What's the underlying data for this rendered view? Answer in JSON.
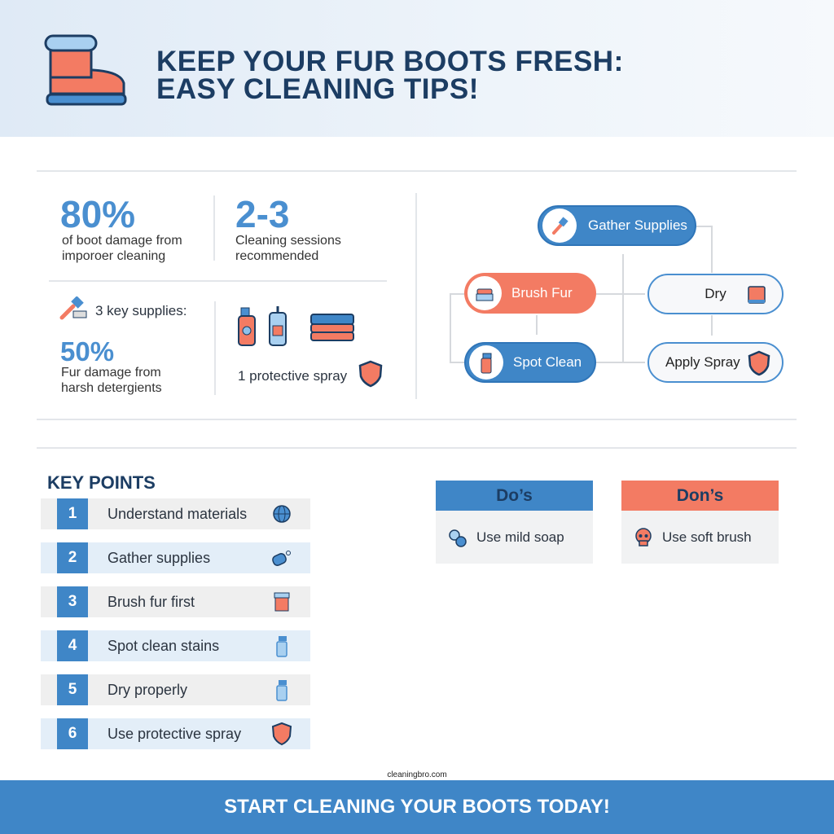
{
  "header": {
    "title_line1": "KEEP YOUR FUR BOOTS FRESH:",
    "title_line2": "EASY CLEANING TIPS!",
    "icon": "fur-boot-icon"
  },
  "stats": {
    "stat1": {
      "value": "80%",
      "text_line1": "of boot damage from",
      "text_line2": "imporoer cleaning"
    },
    "stat2": {
      "value": "2-3",
      "text_line1": "Cleaning sessions",
      "text_line2": "recommended"
    },
    "supplies": {
      "label": "3 key supplies:",
      "icon": "brush-icon"
    },
    "stat3": {
      "value": "50%",
      "text_line1": "Fur damage from",
      "text_line2": "harsh detergients"
    },
    "spray": {
      "label": "1 protective spray",
      "icon": "shield-icon"
    }
  },
  "flow": {
    "gather": "Gather Supplies",
    "brush": "Brush Fur",
    "spot": "Spot Clean",
    "dry": "Dry",
    "apply": "Apply Spray"
  },
  "key_points": {
    "title": "KEY POINTS",
    "items": [
      {
        "num": "1",
        "label": "Understand materials",
        "icon": "globe-icon"
      },
      {
        "num": "2",
        "label": "Gather supplies",
        "icon": "soap-icon"
      },
      {
        "num": "3",
        "label": "Brush fur first",
        "icon": "boot-icon"
      },
      {
        "num": "4",
        "label": "Spot clean stains",
        "icon": "spray-bottle-icon"
      },
      {
        "num": "5",
        "label": "Dry properly",
        "icon": "spray-bottle-icon"
      },
      {
        "num": "6",
        "label": "Use protective spray",
        "icon": "shield-icon"
      }
    ]
  },
  "dos": {
    "title": "Do’s",
    "item": "Use mild soap",
    "icon": "bubbles-icon"
  },
  "donts": {
    "title": "Don’s",
    "item": "Use soft brush",
    "icon": "skull-icon"
  },
  "watermark": "cleaningbro.com",
  "footer": {
    "cta": "START CLEANING YOUR BOOTS TODAY!"
  },
  "colors": {
    "blue": "#3f86c7",
    "coral": "#f37b63",
    "navy": "#1c3d63"
  }
}
